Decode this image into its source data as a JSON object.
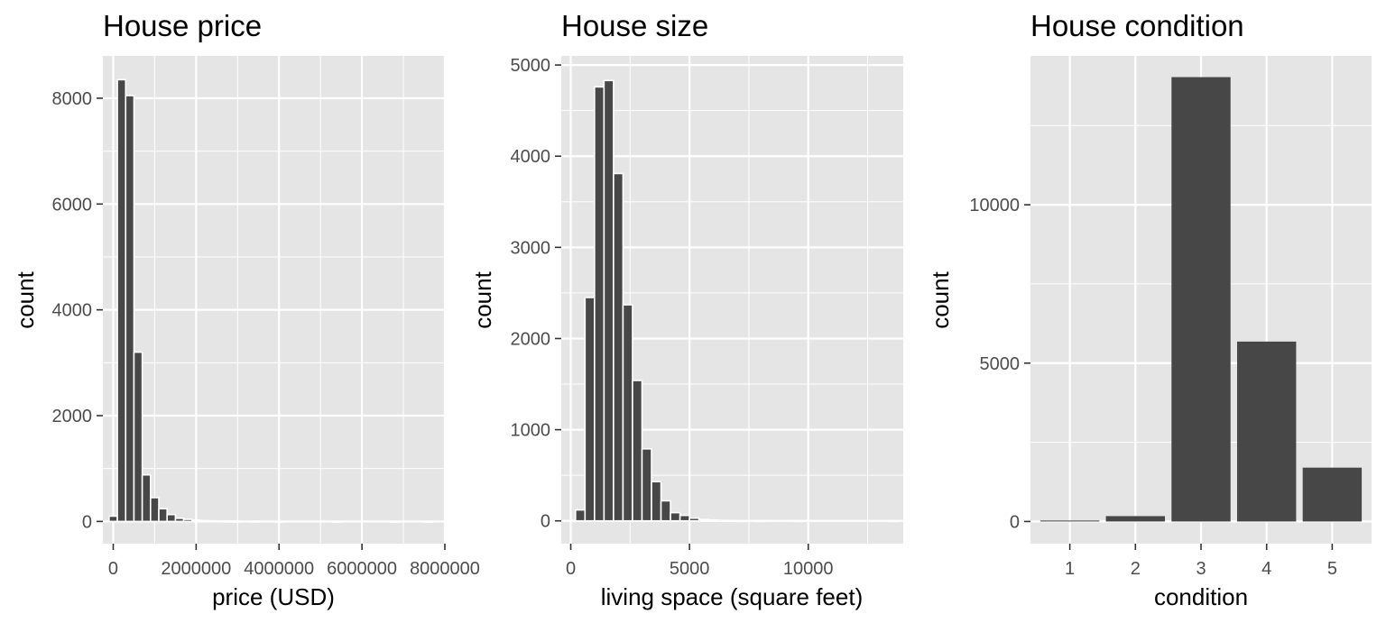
{
  "figure": {
    "background": "#ffffff",
    "panel_background": "#e5e5e5",
    "grid_color": "#ffffff",
    "bar_fill": "#474747",
    "bar_outline": "#ffffff",
    "tick_color": "#4d4d4d"
  },
  "chart_data": [
    {
      "type": "bar",
      "subtype": "histogram",
      "title": "House price",
      "xlabel": "price (USD)",
      "ylabel": "count",
      "xlim": [
        -250000,
        8000000
      ],
      "ylim": [
        -420,
        8800
      ],
      "xticks": [
        0,
        2000000,
        4000000,
        6000000,
        8000000
      ],
      "xtick_labels": [
        "0",
        "2000000",
        "4000000",
        "6000000",
        "8000000"
      ],
      "yticks": [
        0,
        2000,
        4000,
        6000,
        8000
      ],
      "ytick_labels": [
        "0",
        "2000",
        "4000",
        "6000",
        "8000"
      ],
      "grid": true,
      "bin_width": 200000,
      "bins": [
        {
          "x": 0,
          "count": 100
        },
        {
          "x": 200000,
          "count": 8350
        },
        {
          "x": 400000,
          "count": 8050
        },
        {
          "x": 600000,
          "count": 3200
        },
        {
          "x": 800000,
          "count": 880
        },
        {
          "x": 1000000,
          "count": 450
        },
        {
          "x": 1200000,
          "count": 240
        },
        {
          "x": 1400000,
          "count": 130
        },
        {
          "x": 1600000,
          "count": 60
        },
        {
          "x": 1800000,
          "count": 40
        },
        {
          "x": 2000000,
          "count": 25
        },
        {
          "x": 2200000,
          "count": 15
        },
        {
          "x": 2400000,
          "count": 10
        },
        {
          "x": 2600000,
          "count": 6
        },
        {
          "x": 2800000,
          "count": 4
        },
        {
          "x": 3000000,
          "count": 3
        },
        {
          "x": 3400000,
          "count": 2
        },
        {
          "x": 4000000,
          "count": 1
        },
        {
          "x": 5400000,
          "count": 1
        },
        {
          "x": 6800000,
          "count": 1
        },
        {
          "x": 7600000,
          "count": 1
        }
      ]
    },
    {
      "type": "bar",
      "subtype": "histogram",
      "title": "House size",
      "xlabel": "living space (square feet)",
      "ylabel": "count",
      "xlim": [
        -400,
        14000
      ],
      "ylim": [
        -250,
        5100
      ],
      "xticks": [
        0,
        5000,
        10000
      ],
      "xtick_labels": [
        "0",
        "5000",
        "10000"
      ],
      "yticks": [
        0,
        1000,
        2000,
        3000,
        4000,
        5000
      ],
      "ytick_labels": [
        "0",
        "1000",
        "2000",
        "3000",
        "4000",
        "5000"
      ],
      "grid": true,
      "bin_width": 400,
      "bins": [
        {
          "x": 400,
          "count": 120
        },
        {
          "x": 800,
          "count": 2450
        },
        {
          "x": 1200,
          "count": 4760
        },
        {
          "x": 1600,
          "count": 4830
        },
        {
          "x": 2000,
          "count": 3810
        },
        {
          "x": 2400,
          "count": 2370
        },
        {
          "x": 2800,
          "count": 1540
        },
        {
          "x": 3200,
          "count": 790
        },
        {
          "x": 3600,
          "count": 430
        },
        {
          "x": 4000,
          "count": 220
        },
        {
          "x": 4400,
          "count": 90
        },
        {
          "x": 4800,
          "count": 60
        },
        {
          "x": 5200,
          "count": 30
        },
        {
          "x": 5600,
          "count": 15
        },
        {
          "x": 6000,
          "count": 10
        },
        {
          "x": 6400,
          "count": 5
        },
        {
          "x": 6800,
          "count": 3
        },
        {
          "x": 7200,
          "count": 2
        },
        {
          "x": 8000,
          "count": 1
        },
        {
          "x": 9600,
          "count": 1
        },
        {
          "x": 13600,
          "count": 1
        }
      ]
    },
    {
      "type": "bar",
      "title": "House condition",
      "xlabel": "condition",
      "ylabel": "count",
      "categories": [
        "1",
        "2",
        "3",
        "4",
        "5"
      ],
      "values": [
        30,
        170,
        14030,
        5680,
        1700
      ],
      "ylim": [
        -700,
        14700
      ],
      "yticks": [
        0,
        5000,
        10000
      ],
      "ytick_labels": [
        "0",
        "5000",
        "10000"
      ],
      "grid": true
    }
  ]
}
